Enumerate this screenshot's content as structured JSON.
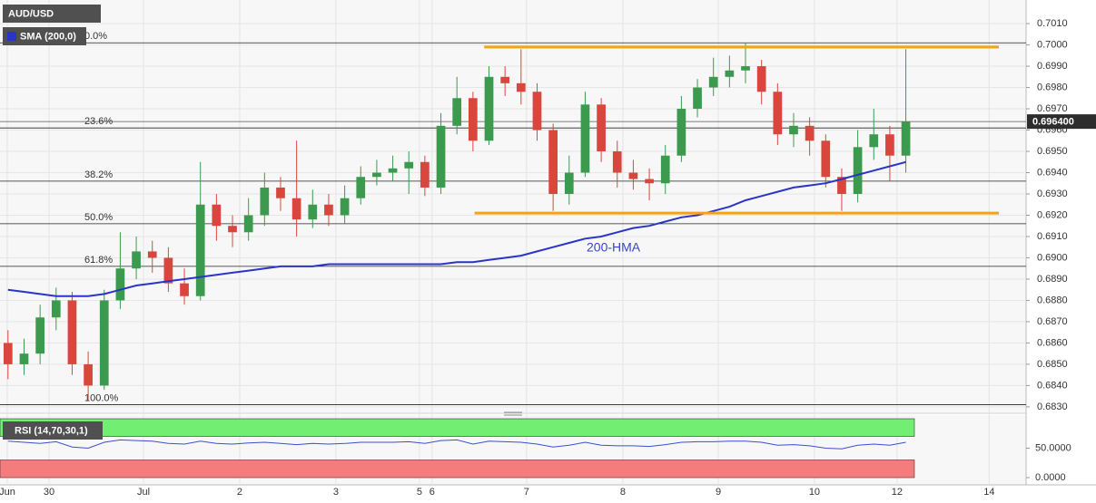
{
  "chart_data": [
    {
      "type": "candlestick",
      "title": "AUD/USD",
      "open": [
        0.686,
        0.685,
        0.6855,
        0.6872,
        0.688,
        0.685,
        0.684,
        0.688,
        0.6895,
        0.6903,
        0.69,
        0.6888,
        0.6882,
        0.6925,
        0.6915,
        0.6912,
        0.692,
        0.6933,
        0.6928,
        0.6918,
        0.6925,
        0.692,
        0.6928,
        0.6938,
        0.694,
        0.6942,
        0.6945,
        0.6933,
        0.6962,
        0.6975,
        0.6955,
        0.6985,
        0.6982,
        0.6978,
        0.696,
        0.693,
        0.694,
        0.6972,
        0.695,
        0.694,
        0.6937,
        0.6935,
        0.6948,
        0.697,
        0.698,
        0.6985,
        0.6988,
        0.699,
        0.6978,
        0.6958,
        0.6962,
        0.6955,
        0.6938,
        0.693,
        0.6952,
        0.6958,
        0.6948
      ],
      "high": [
        0.6866,
        0.6862,
        0.6878,
        0.6886,
        0.6884,
        0.6856,
        0.6885,
        0.6912,
        0.691,
        0.6908,
        0.6905,
        0.6895,
        0.6945,
        0.693,
        0.692,
        0.6928,
        0.694,
        0.6938,
        0.6955,
        0.6932,
        0.693,
        0.6934,
        0.6943,
        0.6946,
        0.6948,
        0.695,
        0.6948,
        0.6968,
        0.6985,
        0.6978,
        0.699,
        0.699,
        0.6998,
        0.6982,
        0.6963,
        0.6948,
        0.6978,
        0.6975,
        0.6955,
        0.6946,
        0.6942,
        0.6953,
        0.6976,
        0.6984,
        0.6994,
        0.6995,
        0.7001,
        0.6993,
        0.6982,
        0.6968,
        0.6966,
        0.6958,
        0.6942,
        0.696,
        0.697,
        0.6962,
        0.6998
      ],
      "low": [
        0.6843,
        0.6845,
        0.685,
        0.6866,
        0.6845,
        0.6833,
        0.6838,
        0.6876,
        0.689,
        0.6893,
        0.6884,
        0.6878,
        0.688,
        0.6908,
        0.6905,
        0.6908,
        0.6915,
        0.6922,
        0.691,
        0.6914,
        0.6915,
        0.6916,
        0.6925,
        0.6934,
        0.6936,
        0.693,
        0.6929,
        0.693,
        0.6958,
        0.695,
        0.6953,
        0.6976,
        0.6972,
        0.6955,
        0.6922,
        0.6925,
        0.6938,
        0.6945,
        0.6933,
        0.6932,
        0.6927,
        0.693,
        0.6945,
        0.6966,
        0.6976,
        0.698,
        0.6982,
        0.6972,
        0.6953,
        0.6952,
        0.6948,
        0.6933,
        0.6922,
        0.6926,
        0.6946,
        0.6936,
        0.694
      ],
      "close": [
        0.685,
        0.6855,
        0.6872,
        0.688,
        0.685,
        0.684,
        0.688,
        0.6895,
        0.6903,
        0.69,
        0.6888,
        0.6882,
        0.6925,
        0.6915,
        0.6912,
        0.692,
        0.6933,
        0.6928,
        0.6918,
        0.6925,
        0.692,
        0.6928,
        0.6938,
        0.694,
        0.6942,
        0.6945,
        0.6933,
        0.6962,
        0.6975,
        0.6955,
        0.6985,
        0.6982,
        0.6978,
        0.696,
        0.693,
        0.694,
        0.6972,
        0.695,
        0.694,
        0.6937,
        0.6935,
        0.6948,
        0.697,
        0.698,
        0.6985,
        0.6988,
        0.699,
        0.6978,
        0.6958,
        0.6962,
        0.6955,
        0.6938,
        0.693,
        0.6952,
        0.6958,
        0.6948,
        0.6964
      ],
      "up_color": "#3c9a4e",
      "down_color": "#d9463e",
      "overlays": [
        {
          "name": "SMA (200,0)",
          "annotation": "200-HMA",
          "color": "#2a35c8",
          "values": [
            0.6885,
            0.6884,
            0.6883,
            0.6882,
            0.6882,
            0.6882,
            0.6883,
            0.6885,
            0.6887,
            0.6888,
            0.6889,
            0.689,
            0.6891,
            0.6892,
            0.6893,
            0.6894,
            0.6895,
            0.6896,
            0.6896,
            0.6896,
            0.6897,
            0.6897,
            0.6897,
            0.6897,
            0.6897,
            0.6897,
            0.6897,
            0.6897,
            0.6898,
            0.6898,
            0.6899,
            0.69,
            0.6901,
            0.6903,
            0.6905,
            0.6907,
            0.6909,
            0.691,
            0.6912,
            0.6914,
            0.6915,
            0.6917,
            0.6919,
            0.692,
            0.6922,
            0.6924,
            0.6927,
            0.6929,
            0.6931,
            0.6933,
            0.6934,
            0.6935,
            0.6937,
            0.6939,
            0.6941,
            0.6943,
            0.6945
          ]
        }
      ],
      "fib_levels": [
        {
          "value": 0.7001,
          "label": "0.0%"
        },
        {
          "value": 0.6961,
          "label": "23.6%"
        },
        {
          "value": 0.6936,
          "label": "38.2%"
        },
        {
          "value": 0.6916,
          "label": "50.0%"
        },
        {
          "value": 0.6896,
          "label": "61.8%"
        },
        {
          "value": 0.6831,
          "label": "100.0%"
        }
      ],
      "channels": [
        {
          "color": "#f5a11c",
          "x": [
            29.7,
            61.8
          ],
          "y": [
            0.6999,
            0.6999
          ]
        },
        {
          "color": "#f5a11c",
          "x": [
            29.1,
            61.8
          ],
          "y": [
            0.6921,
            0.6921
          ]
        }
      ],
      "last_price": {
        "value": 0.6964,
        "label": "0.696400"
      },
      "xlim": [
        -0.5,
        63.5
      ],
      "xticks": [
        {
          "value": -0.05,
          "label": "Jun"
        },
        {
          "value": 2.56,
          "label": "30"
        },
        {
          "value": 8.45,
          "label": "Jul"
        },
        {
          "value": 14.45,
          "label": "2"
        },
        {
          "value": 20.45,
          "label": "3"
        },
        {
          "value": 25.66,
          "label": "5"
        },
        {
          "value": 26.45,
          "label": "6"
        },
        {
          "value": 32.34,
          "label": "7"
        },
        {
          "value": 38.35,
          "label": "8"
        },
        {
          "value": 44.3,
          "label": "9"
        },
        {
          "value": 50.3,
          "label": "10"
        },
        {
          "value": 55.45,
          "label": "12"
        },
        {
          "value": 61.2,
          "label": "14"
        }
      ],
      "ylim": [
        0.68274,
        0.70211
      ],
      "yticks": [
        {
          "value": 0.683,
          "label": "0.6830"
        },
        {
          "value": 0.684,
          "label": "0.6840"
        },
        {
          "value": 0.685,
          "label": "0.6850"
        },
        {
          "value": 0.686,
          "label": "0.6860"
        },
        {
          "value": 0.687,
          "label": "0.6870"
        },
        {
          "value": 0.688,
          "label": "0.6880"
        },
        {
          "value": 0.689,
          "label": "0.6890"
        },
        {
          "value": 0.69,
          "label": "0.6900"
        },
        {
          "value": 0.691,
          "label": "0.6910"
        },
        {
          "value": 0.692,
          "label": "0.6920"
        },
        {
          "value": 0.693,
          "label": "0.6930"
        },
        {
          "value": 0.694,
          "label": "0.6940"
        },
        {
          "value": 0.695,
          "label": "0.6950"
        },
        {
          "value": 0.696,
          "label": "0.6960"
        },
        {
          "value": 0.697,
          "label": "0.6970"
        },
        {
          "value": 0.698,
          "label": "0.6980"
        },
        {
          "value": 0.699,
          "label": "0.6990"
        },
        {
          "value": 0.7,
          "label": "0.7000"
        },
        {
          "value": 0.701,
          "label": "0.7010"
        }
      ],
      "grid": true
    },
    {
      "type": "line",
      "title": "RSI (14,70,30,1)",
      "color": "#3b4fd0",
      "values": [
        62,
        60,
        58,
        61,
        52,
        50,
        60,
        64,
        63,
        62,
        58,
        57,
        62,
        58,
        57,
        59,
        60,
        58,
        56,
        58,
        57,
        58,
        60,
        60,
        60,
        61,
        58,
        63,
        64,
        57,
        62,
        61,
        60,
        57,
        52,
        55,
        60,
        55,
        54,
        54,
        53,
        56,
        60,
        61,
        61,
        62,
        62,
        60,
        55,
        56,
        54,
        50,
        49,
        55,
        57,
        55,
        60
      ],
      "bands": [
        {
          "from": 70,
          "to": 100,
          "color": "#72ee72"
        },
        {
          "from": 0,
          "to": 30,
          "color": "#f47c7c"
        }
      ],
      "ylim": [
        -12.3,
        110.8
      ],
      "yticks": [
        {
          "value": 50,
          "label": "50.0000"
        },
        {
          "value": 0,
          "label": "0.0000"
        }
      ]
    }
  ]
}
